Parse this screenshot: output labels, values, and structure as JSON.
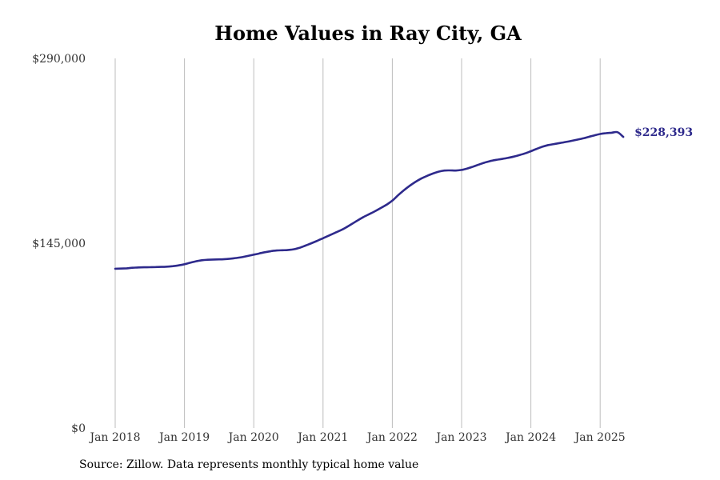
{
  "chart_data": {
    "type": "line",
    "title": "Home Values in Ray City, GA",
    "xlabel": "",
    "ylabel": "",
    "ylim": [
      0,
      290000
    ],
    "yticks": [
      "$0",
      "$145,000",
      "$290,000"
    ],
    "xticks": [
      "Jan 2018",
      "Jan 2019",
      "Jan 2020",
      "Jan 2021",
      "Jan 2022",
      "Jan 2023",
      "Jan 2024",
      "Jan 2025"
    ],
    "grid": "vertical",
    "color": "#2e2a8c",
    "end_label": "$228,393",
    "series": [
      {
        "x": [
          "2018-01",
          "2018-02",
          "2018-03",
          "2018-04",
          "2018-05",
          "2018-06",
          "2018-07",
          "2018-08",
          "2018-09",
          "2018-10",
          "2018-11",
          "2018-12",
          "2019-01",
          "2019-02",
          "2019-03",
          "2019-04",
          "2019-05",
          "2019-06",
          "2019-07",
          "2019-08",
          "2019-09",
          "2019-10",
          "2019-11",
          "2019-12",
          "2020-01",
          "2020-02",
          "2020-03",
          "2020-04",
          "2020-05",
          "2020-06",
          "2020-07",
          "2020-08",
          "2020-09",
          "2020-10",
          "2020-11",
          "2020-12",
          "2021-01",
          "2021-02",
          "2021-03",
          "2021-04",
          "2021-05",
          "2021-06",
          "2021-07",
          "2021-08",
          "2021-09",
          "2021-10",
          "2021-11",
          "2021-12",
          "2022-01",
          "2022-02",
          "2022-03",
          "2022-04",
          "2022-05",
          "2022-06",
          "2022-07",
          "2022-08",
          "2022-09",
          "2022-10",
          "2022-11",
          "2022-12",
          "2023-01",
          "2023-02",
          "2023-03",
          "2023-04",
          "2023-05",
          "2023-06",
          "2023-07",
          "2023-08",
          "2023-09",
          "2023-10",
          "2023-11",
          "2023-12",
          "2024-01",
          "2024-02",
          "2024-03",
          "2024-04",
          "2024-05",
          "2024-06",
          "2024-07",
          "2024-08",
          "2024-09",
          "2024-10",
          "2024-11",
          "2024-12",
          "2025-01",
          "2025-02",
          "2025-03",
          "2025-04",
          "2025-05"
        ],
        "values": [
          125000,
          125100,
          125300,
          125700,
          126000,
          126100,
          126200,
          126300,
          126400,
          126600,
          127000,
          127600,
          128500,
          129700,
          130800,
          131600,
          132000,
          132200,
          132300,
          132500,
          132900,
          133400,
          134100,
          135000,
          136000,
          137000,
          138000,
          138800,
          139300,
          139500,
          139700,
          140300,
          141500,
          143200,
          145000,
          146900,
          148900,
          150900,
          153000,
          155000,
          157400,
          160100,
          162900,
          165500,
          167800,
          170100,
          172600,
          175200,
          178400,
          182600,
          186500,
          190000,
          193100,
          195700,
          197800,
          199600,
          201100,
          202000,
          202100,
          202000,
          202500,
          203600,
          205100,
          206700,
          208300,
          209500,
          210400,
          211100,
          211900,
          212900,
          214100,
          215500,
          217200,
          219000,
          220700,
          222000,
          222800,
          223600,
          224400,
          225300,
          226200,
          227200,
          228400,
          229600,
          230700,
          231300,
          231700,
          232100,
          228393
        ]
      }
    ]
  },
  "source_text": "Source: Zillow. Data represents monthly typical home value"
}
